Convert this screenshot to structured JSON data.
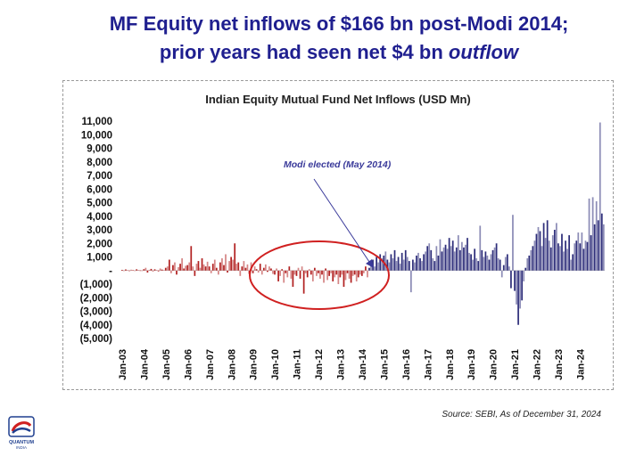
{
  "slide": {
    "title_line1": "MF Equity net inflows of $166 bn post-Modi 2014;",
    "title_line2_prefix": "prior years had seen net $4 bn ",
    "title_line2_emph": "outflow",
    "source": "Source: SEBI, As of December 31, 2024",
    "logo_text": "QUANTUM",
    "logo_subtext": "INDIA"
  },
  "colors": {
    "title": "#1f1f8f",
    "pre_2014": "#b22222",
    "post_2014": "#2e2e7a",
    "annotation": "#3a3a9a",
    "circle": "#d02020"
  },
  "chart_data": {
    "type": "bar",
    "title": "Indian Equity Mutual Fund Net Inflows (USD Mn)",
    "ylabel": "",
    "xlabel": "",
    "ylim": [
      -5000,
      11000
    ],
    "y_ticks": [
      11000,
      10000,
      9000,
      8000,
      7000,
      6000,
      5000,
      4000,
      3000,
      2000,
      1000,
      0,
      -1000,
      -2000,
      -3000,
      -4000,
      -5000
    ],
    "y_tick_labels": [
      "11,000",
      "10,000",
      "9,000",
      "8,000",
      "7,000",
      "6,000",
      "5,000",
      "4,000",
      "3,000",
      "2,000",
      "1,000",
      "-",
      "(1,000)",
      "(2,000)",
      "(3,000)",
      "(4,000)",
      "(5,000)"
    ],
    "x_tick_labels": [
      "Jan-03",
      "Jan-04",
      "Jan-05",
      "Jan-06",
      "Jan-07",
      "Jan-08",
      "Jan-09",
      "Jan-10",
      "Jan-11",
      "Jan-12",
      "Jan-13",
      "Jan-14",
      "Jan-15",
      "Jan-16",
      "Jan-17",
      "Jan-18",
      "Jan-19",
      "Jan-20",
      "Jan-21",
      "Jan-22",
      "Jan-23",
      "Jan-24"
    ],
    "annotation": "Modi elected (May 2014)",
    "grid": false,
    "legend": "none",
    "series": [
      {
        "annual_values": [
          [
            50,
            -20,
            80,
            30,
            -40,
            60,
            20,
            -30,
            90,
            40,
            10,
            -10
          ],
          [
            100,
            200,
            -150,
            50,
            120,
            -80,
            90,
            30,
            -60,
            150,
            70,
            20
          ],
          [
            200,
            300,
            800,
            -200,
            400,
            600,
            -300,
            250,
            500,
            900,
            150,
            350
          ],
          [
            400,
            600,
            1800,
            300,
            -400,
            500,
            700,
            200,
            900,
            450,
            300,
            650
          ],
          [
            300,
            -200,
            500,
            800,
            200,
            -300,
            600,
            900,
            400,
            1200,
            -150,
            700
          ],
          [
            1000,
            800,
            2000,
            500,
            600,
            -400,
            300,
            700,
            200,
            450,
            -250,
            600
          ],
          [
            -200,
            300,
            100,
            -150,
            500,
            -300,
            200,
            450,
            -100,
            300,
            150,
            -250
          ],
          [
            -300,
            150,
            -800,
            -400,
            100,
            -900,
            -200,
            -500,
            300,
            -600,
            -1200,
            -300
          ],
          [
            -400,
            200,
            -600,
            300,
            -1700,
            -200,
            -500,
            100,
            -300,
            -800,
            200,
            -400
          ],
          [
            -200,
            -600,
            -300,
            -900,
            150,
            -700,
            -400,
            -200,
            -800,
            -500,
            -300,
            -1000
          ],
          [
            -500,
            -300,
            -1200,
            -700,
            -200,
            -600,
            -900,
            -400,
            -300,
            -800,
            -500,
            -300
          ],
          [
            -400,
            -200,
            300,
            -500,
            200,
            500,
            800,
            300,
            1000,
            600,
            1200,
            900
          ],
          [
            1100,
            1400,
            800,
            600,
            1200,
            900,
            1500,
            700,
            1000,
            500,
            1300,
            800
          ],
          [
            1500,
            1000,
            700,
            -1600,
            800,
            600,
            1100,
            1300,
            900,
            700,
            1200,
            1400
          ],
          [
            1800,
            2000,
            1500,
            900,
            700,
            1800,
            1100,
            2300,
            1400,
            1700,
            1900,
            1600
          ],
          [
            2400,
            1800,
            2200,
            1400,
            1700,
            2600,
            1500,
            2100,
            1700,
            1900,
            2400,
            1300
          ],
          [
            1200,
            800,
            1600,
            900,
            700,
            3300,
            1500,
            1000,
            1400,
            1100,
            800,
            1200
          ],
          [
            1500,
            1700,
            2000,
            900,
            800,
            -500,
            400,
            1000,
            1200,
            300,
            -1300,
            4100
          ],
          [
            -1500,
            -2500,
            -4000,
            -2800,
            -2200,
            -800,
            200,
            900,
            1100,
            1500,
            1800,
            2200
          ],
          [
            2700,
            3200,
            2900,
            1800,
            3500,
            2400,
            3700,
            2200,
            1700,
            2600,
            3000,
            3500
          ],
          [
            2000,
            1800,
            2700,
            1400,
            2200,
            1600,
            2600,
            800,
            1200,
            2000,
            2200,
            2800
          ],
          [
            2000,
            2800,
            1600,
            2200,
            2100,
            5300,
            2600,
            5400,
            3400,
            5100,
            3700,
            10900
          ]
        ],
        "partial_2025": [
          4200,
          3400
        ],
        "name": ""
      }
    ]
  }
}
